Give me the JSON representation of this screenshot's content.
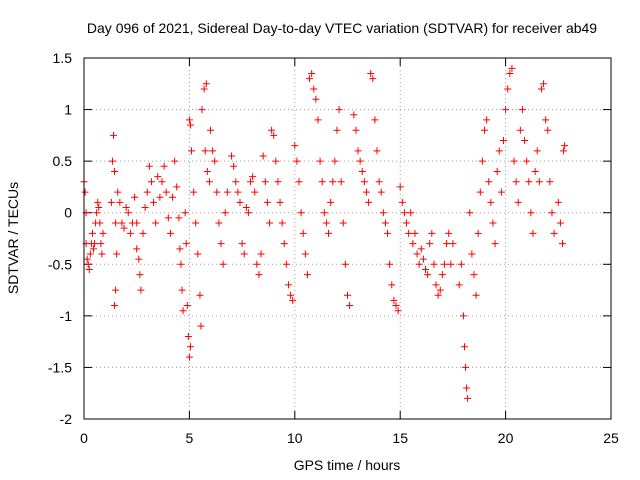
{
  "chart_data": {
    "type": "scatter",
    "title": "Day 096 of 2021, Sidereal Day-to-day VTEC variation (SDTVAR) for receiver ab49",
    "xlabel": "GPS time / hours",
    "ylabel": "SDTVAR / TECUs",
    "xlim": [
      0,
      25
    ],
    "ylim": [
      -2,
      1.5
    ],
    "xticks": [
      0,
      5,
      10,
      15,
      20,
      25
    ],
    "xtick_labels": [
      "0",
      "5",
      "10",
      "15",
      "20",
      "25"
    ],
    "yticks": [
      -2,
      -1.5,
      -1,
      -0.5,
      0,
      0.5,
      1,
      1.5
    ],
    "ytick_labels": [
      "-2",
      "-1.5",
      "-1",
      "-0.5",
      "0",
      "0.5",
      "1",
      "1.5"
    ],
    "grid": true,
    "marker": "+",
    "color": "#ff0000",
    "series": [
      {
        "name": "SDTVAR",
        "points": [
          [
            0.0,
            0.3
          ],
          [
            0.05,
            0.2
          ],
          [
            0.1,
            0.0
          ],
          [
            0.1,
            -0.3
          ],
          [
            0.15,
            -0.45
          ],
          [
            0.2,
            -0.5
          ],
          [
            0.25,
            -0.55
          ],
          [
            0.3,
            -0.4
          ],
          [
            0.35,
            -0.3
          ],
          [
            0.4,
            -0.2
          ],
          [
            0.45,
            -0.35
          ],
          [
            0.5,
            -0.3
          ],
          [
            0.55,
            -0.1
          ],
          [
            0.6,
            0.0
          ],
          [
            0.65,
            0.1
          ],
          [
            0.7,
            0.05
          ],
          [
            0.75,
            -0.1
          ],
          [
            0.8,
            -0.3
          ],
          [
            0.85,
            -0.4
          ],
          [
            0.9,
            -0.2
          ],
          [
            1.3,
            0.1
          ],
          [
            1.35,
            0.5
          ],
          [
            1.4,
            0.75
          ],
          [
            1.45,
            0.4
          ],
          [
            1.5,
            -0.1
          ],
          [
            1.55,
            -0.4
          ],
          [
            1.5,
            -0.75
          ],
          [
            1.45,
            -0.9
          ],
          [
            1.6,
            0.2
          ],
          [
            1.7,
            0.1
          ],
          [
            1.8,
            -0.1
          ],
          [
            1.9,
            -0.15
          ],
          [
            2.0,
            0.05
          ],
          [
            2.1,
            0.0
          ],
          [
            2.2,
            -0.2
          ],
          [
            2.3,
            -0.1
          ],
          [
            2.4,
            0.15
          ],
          [
            2.5,
            -0.1
          ],
          [
            2.5,
            -0.35
          ],
          [
            2.6,
            -0.45
          ],
          [
            2.65,
            -0.6
          ],
          [
            2.7,
            -0.75
          ],
          [
            2.8,
            -0.2
          ],
          [
            2.9,
            0.05
          ],
          [
            3.0,
            0.2
          ],
          [
            3.1,
            0.45
          ],
          [
            3.2,
            0.3
          ],
          [
            3.3,
            0.1
          ],
          [
            3.4,
            -0.1
          ],
          [
            3.5,
            0.35
          ],
          [
            3.6,
            0.15
          ],
          [
            3.7,
            0.3
          ],
          [
            3.8,
            0.45
          ],
          [
            3.9,
            0.2
          ],
          [
            4.0,
            -0.05
          ],
          [
            4.1,
            -0.2
          ],
          [
            4.2,
            0.15
          ],
          [
            4.3,
            0.5
          ],
          [
            4.4,
            0.25
          ],
          [
            4.5,
            -0.05
          ],
          [
            4.55,
            -0.35
          ],
          [
            4.6,
            -0.5
          ],
          [
            4.65,
            -0.75
          ],
          [
            4.7,
            -0.95
          ],
          [
            4.8,
            0.0
          ],
          [
            4.85,
            -0.3
          ],
          [
            4.9,
            -0.9
          ],
          [
            4.95,
            -1.2
          ],
          [
            5.0,
            -1.4
          ],
          [
            5.05,
            -1.3
          ],
          [
            5.0,
            0.9
          ],
          [
            5.05,
            0.85
          ],
          [
            5.1,
            0.6
          ],
          [
            5.2,
            0.2
          ],
          [
            5.3,
            -0.1
          ],
          [
            5.4,
            -0.4
          ],
          [
            5.5,
            -0.8
          ],
          [
            5.55,
            -1.1
          ],
          [
            5.6,
            1.0
          ],
          [
            5.7,
            1.2
          ],
          [
            5.8,
            1.25
          ],
          [
            5.75,
            0.6
          ],
          [
            5.85,
            0.4
          ],
          [
            5.95,
            0.3
          ],
          [
            6.0,
            0.8
          ],
          [
            6.1,
            0.6
          ],
          [
            6.2,
            0.5
          ],
          [
            6.3,
            0.2
          ],
          [
            6.4,
            -0.1
          ],
          [
            6.5,
            -0.3
          ],
          [
            6.6,
            -0.5
          ],
          [
            6.7,
            0.0
          ],
          [
            6.8,
            0.2
          ],
          [
            7.0,
            0.55
          ],
          [
            7.1,
            0.45
          ],
          [
            7.2,
            0.3
          ],
          [
            7.3,
            0.2
          ],
          [
            7.4,
            0.1
          ],
          [
            7.5,
            -0.3
          ],
          [
            7.6,
            -0.4
          ],
          [
            7.7,
            0.05
          ],
          [
            7.8,
            0.0
          ],
          [
            7.9,
            0.3
          ],
          [
            8.0,
            0.35
          ],
          [
            8.1,
            0.2
          ],
          [
            8.2,
            -0.5
          ],
          [
            8.3,
            -0.6
          ],
          [
            8.4,
            -0.4
          ],
          [
            8.5,
            0.55
          ],
          [
            8.6,
            0.3
          ],
          [
            8.7,
            0.1
          ],
          [
            8.8,
            -0.1
          ],
          [
            8.9,
            0.8
          ],
          [
            9.0,
            0.75
          ],
          [
            9.1,
            0.5
          ],
          [
            9.2,
            0.3
          ],
          [
            9.3,
            0.1
          ],
          [
            9.4,
            -0.1
          ],
          [
            9.5,
            -0.3
          ],
          [
            9.6,
            -0.5
          ],
          [
            9.7,
            -0.7
          ],
          [
            9.8,
            -0.8
          ],
          [
            9.9,
            -0.85
          ],
          [
            10.0,
            0.65
          ],
          [
            10.1,
            0.5
          ],
          [
            10.2,
            0.3
          ],
          [
            10.3,
            0.0
          ],
          [
            10.4,
            -0.2
          ],
          [
            10.5,
            -0.4
          ],
          [
            10.6,
            -0.6
          ],
          [
            10.7,
            1.3
          ],
          [
            10.8,
            1.35
          ],
          [
            10.9,
            1.2
          ],
          [
            11.0,
            1.1
          ],
          [
            11.1,
            0.9
          ],
          [
            11.2,
            0.5
          ],
          [
            11.3,
            0.3
          ],
          [
            11.4,
            0.0
          ],
          [
            11.5,
            -0.1
          ],
          [
            11.6,
            -0.2
          ],
          [
            11.7,
            0.1
          ],
          [
            11.8,
            0.3
          ],
          [
            11.9,
            0.5
          ],
          [
            12.0,
            0.8
          ],
          [
            12.1,
            1.0
          ],
          [
            12.2,
            0.3
          ],
          [
            12.3,
            -0.1
          ],
          [
            12.4,
            -0.5
          ],
          [
            12.5,
            -0.8
          ],
          [
            12.6,
            -0.9
          ],
          [
            12.8,
            0.95
          ],
          [
            12.9,
            0.8
          ],
          [
            13.0,
            0.6
          ],
          [
            13.1,
            0.5
          ],
          [
            13.2,
            0.4
          ],
          [
            13.3,
            0.3
          ],
          [
            13.4,
            0.2
          ],
          [
            13.5,
            0.1
          ],
          [
            13.6,
            1.35
          ],
          [
            13.7,
            1.3
          ],
          [
            13.8,
            0.9
          ],
          [
            13.9,
            0.6
          ],
          [
            14.0,
            0.3
          ],
          [
            14.1,
            0.2
          ],
          [
            14.2,
            0.0
          ],
          [
            14.3,
            -0.1
          ],
          [
            14.4,
            -0.2
          ],
          [
            14.5,
            -0.5
          ],
          [
            14.6,
            -0.7
          ],
          [
            14.7,
            -0.85
          ],
          [
            14.8,
            -0.9
          ],
          [
            14.9,
            -0.95
          ],
          [
            15.0,
            0.25
          ],
          [
            15.1,
            0.1
          ],
          [
            15.2,
            0.0
          ],
          [
            15.3,
            -0.1
          ],
          [
            15.4,
            -0.2
          ],
          [
            15.5,
            0.0
          ],
          [
            15.6,
            -0.3
          ],
          [
            15.7,
            -0.2
          ],
          [
            15.8,
            -0.4
          ],
          [
            15.9,
            -0.5
          ],
          [
            16.0,
            -0.35
          ],
          [
            16.1,
            -0.45
          ],
          [
            16.2,
            -0.55
          ],
          [
            16.3,
            -0.6
          ],
          [
            16.4,
            -0.3
          ],
          [
            16.5,
            -0.2
          ],
          [
            16.6,
            -0.5
          ],
          [
            16.7,
            -0.7
          ],
          [
            16.8,
            -0.8
          ],
          [
            16.9,
            -0.75
          ],
          [
            17.0,
            -0.6
          ],
          [
            17.1,
            -0.5
          ],
          [
            17.2,
            -0.3
          ],
          [
            17.3,
            -0.2
          ],
          [
            17.4,
            -0.5
          ],
          [
            17.5,
            -0.3
          ],
          [
            17.8,
            -0.7
          ],
          [
            17.9,
            -0.5
          ],
          [
            18.0,
            -1.0
          ],
          [
            18.05,
            -1.3
          ],
          [
            18.1,
            -1.5
          ],
          [
            18.15,
            -1.7
          ],
          [
            18.2,
            -1.8
          ],
          [
            18.3,
            0.0
          ],
          [
            18.4,
            -0.4
          ],
          [
            18.5,
            -0.6
          ],
          [
            18.6,
            -0.8
          ],
          [
            18.7,
            -0.2
          ],
          [
            18.8,
            0.2
          ],
          [
            18.9,
            0.5
          ],
          [
            19.0,
            0.8
          ],
          [
            19.1,
            0.9
          ],
          [
            19.2,
            0.3
          ],
          [
            19.3,
            0.1
          ],
          [
            19.4,
            -0.1
          ],
          [
            19.5,
            -0.3
          ],
          [
            19.6,
            0.4
          ],
          [
            19.7,
            0.6
          ],
          [
            19.8,
            0.2
          ],
          [
            19.9,
            0.7
          ],
          [
            20.0,
            1.0
          ],
          [
            20.1,
            1.2
          ],
          [
            20.2,
            1.35
          ],
          [
            20.3,
            1.4
          ],
          [
            20.4,
            0.5
          ],
          [
            20.5,
            0.3
          ],
          [
            20.6,
            0.1
          ],
          [
            20.7,
            0.8
          ],
          [
            20.8,
            1.0
          ],
          [
            20.9,
            0.7
          ],
          [
            21.0,
            0.5
          ],
          [
            21.1,
            0.3
          ],
          [
            21.2,
            0.0
          ],
          [
            21.3,
            -0.2
          ],
          [
            21.4,
            0.4
          ],
          [
            21.5,
            0.6
          ],
          [
            21.6,
            0.3
          ],
          [
            21.7,
            1.2
          ],
          [
            21.8,
            1.25
          ],
          [
            21.9,
            0.9
          ],
          [
            22.0,
            0.8
          ],
          [
            22.1,
            0.3
          ],
          [
            22.2,
            0.0
          ],
          [
            22.3,
            -0.2
          ],
          [
            22.5,
            0.1
          ],
          [
            22.6,
            -0.1
          ],
          [
            22.7,
            -0.3
          ],
          [
            22.75,
            0.6
          ],
          [
            22.8,
            0.65
          ]
        ]
      }
    ]
  }
}
